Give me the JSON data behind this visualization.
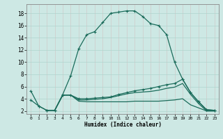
{
  "xlabel": "Humidex (Indice chaleur)",
  "bg_color": "#cde8e4",
  "grid_color": "#aed4ce",
  "line_color": "#1a6b5a",
  "x_ticks": [
    0,
    1,
    2,
    3,
    4,
    5,
    6,
    7,
    8,
    9,
    10,
    11,
    12,
    13,
    14,
    15,
    16,
    17,
    18,
    19,
    20,
    21,
    22,
    23
  ],
  "y_ticks": [
    2,
    4,
    6,
    8,
    10,
    12,
    14,
    16,
    18
  ],
  "xlim": [
    -0.5,
    23.5
  ],
  "ylim": [
    1.5,
    19.5
  ],
  "line1_x": [
    0,
    1,
    2,
    3,
    4,
    5,
    6,
    7,
    8,
    9,
    10,
    11,
    12,
    13,
    14,
    15,
    16,
    17,
    18,
    19,
    20,
    21,
    22,
    23
  ],
  "line1_y": [
    5.3,
    2.8,
    2.1,
    2.1,
    4.7,
    7.8,
    12.2,
    14.5,
    15.0,
    16.5,
    18.0,
    18.2,
    18.4,
    18.4,
    17.5,
    16.3,
    16.0,
    14.5,
    10.0,
    7.2,
    5.0,
    3.5,
    2.2,
    2.1
  ],
  "line2_x": [
    0,
    1,
    2,
    3,
    4,
    5,
    6,
    7,
    8,
    9,
    10,
    11,
    12,
    13,
    14,
    15,
    16,
    17,
    18,
    19,
    20,
    21,
    22,
    23
  ],
  "line2_y": [
    3.8,
    2.8,
    2.1,
    2.1,
    4.6,
    4.6,
    4.0,
    4.0,
    4.1,
    4.2,
    4.3,
    4.7,
    5.0,
    5.3,
    5.5,
    5.7,
    6.0,
    6.3,
    6.5,
    7.2,
    5.0,
    3.5,
    2.2,
    2.1
  ],
  "line3_x": [
    2,
    3,
    4,
    5,
    6,
    7,
    8,
    9,
    10,
    11,
    12,
    13,
    14,
    15,
    16,
    17,
    18,
    19,
    20,
    21,
    22,
    23
  ],
  "line3_y": [
    2.1,
    2.1,
    4.6,
    4.6,
    3.8,
    3.8,
    3.9,
    4.0,
    4.2,
    4.5,
    4.8,
    5.0,
    5.1,
    5.2,
    5.4,
    5.7,
    5.9,
    6.5,
    4.7,
    3.2,
    2.0,
    2.0
  ],
  "line4_x": [
    2,
    3,
    4,
    5,
    6,
    7,
    8,
    9,
    10,
    11,
    12,
    13,
    14,
    15,
    16,
    17,
    18,
    19,
    20,
    21,
    22,
    23
  ],
  "line4_y": [
    2.1,
    2.1,
    4.6,
    4.6,
    3.6,
    3.5,
    3.5,
    3.5,
    3.5,
    3.5,
    3.5,
    3.6,
    3.6,
    3.6,
    3.6,
    3.7,
    3.8,
    4.0,
    3.0,
    2.5,
    2.0,
    2.0
  ]
}
